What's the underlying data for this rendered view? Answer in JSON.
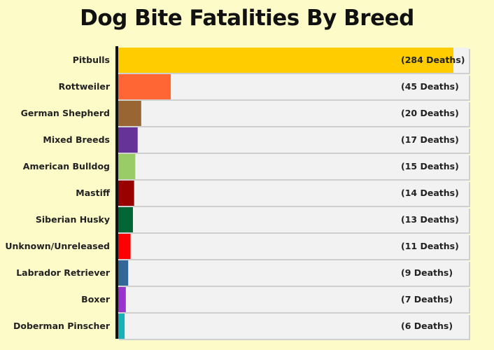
{
  "chart_data": {
    "type": "bar",
    "orientation": "horizontal",
    "title": "Dog Bite Fatalities By Breed",
    "xlabel": "",
    "ylabel": "",
    "grid": false,
    "categories": [
      "Pitbulls",
      "Rottweiler",
      "German Shepherd",
      "Mixed Breeds",
      "American Bulldog",
      "Mastiff",
      "Siberian Husky",
      "Unknown/Unreleased",
      "Labrador Retriever",
      "Boxer",
      "Doberman Pinscher"
    ],
    "values": [
      284,
      45,
      20,
      17,
      15,
      14,
      13,
      11,
      9,
      7,
      6
    ],
    "value_labels": [
      "(284 Deaths)",
      "(45 Deaths)",
      "(20 Deaths)",
      "(17 Deaths)",
      "(15 Deaths)",
      "(14 Deaths)",
      "(13 Deaths)",
      "(11 Deaths)",
      "(9 Deaths)",
      "(7 Deaths)",
      "(6 Deaths)"
    ],
    "colors": [
      "#ffcc00",
      "#ff6633",
      "#996633",
      "#663399",
      "#99cc66",
      "#990000",
      "#006633",
      "#ff0000",
      "#336699",
      "#9933cc",
      "#1ab0b8"
    ],
    "track_color": "#f2f2f2",
    "background_color": "#fdfbc8"
  }
}
